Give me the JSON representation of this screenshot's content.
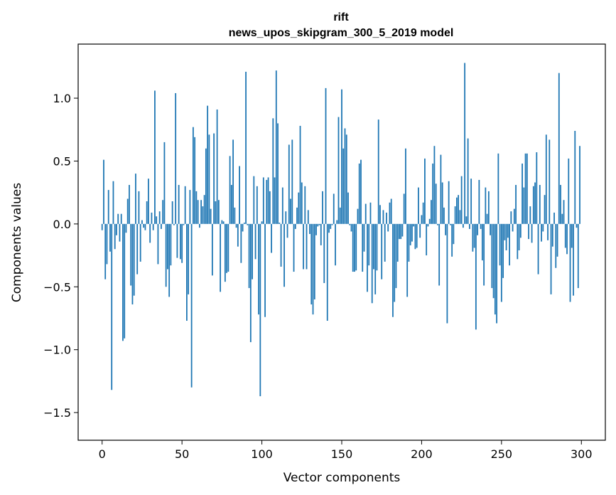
{
  "chart_data": {
    "type": "bar",
    "title_lines": [
      "rift",
      "news_upos_skipgram_300_5_2019 model"
    ],
    "xlabel": "Vector components",
    "ylabel": "Components values",
    "xlim": [
      -15,
      315
    ],
    "ylim": [
      -1.72,
      1.43
    ],
    "x_ticks": [
      0,
      50,
      100,
      150,
      200,
      250,
      300
    ],
    "y_ticks": [
      -1.5,
      -1.0,
      -0.5,
      0.0,
      0.5,
      1.0
    ],
    "y_tick_labels": [
      "−1.5",
      "−1.0",
      "−0.5",
      "0.0",
      "0.5",
      "1.0"
    ],
    "bar_color": "#1f77b4",
    "grid": false,
    "values": [
      -0.05,
      0.51,
      -0.44,
      -0.32,
      0.27,
      -0.22,
      -1.32,
      0.34,
      -0.2,
      -0.09,
      0.08,
      -0.14,
      0.08,
      -0.93,
      -0.91,
      -0.07,
      0.2,
      0.31,
      -0.49,
      -0.64,
      -0.57,
      0.4,
      -0.4,
      0.26,
      -0.3,
      0.03,
      -0.03,
      -0.05,
      0.18,
      0.36,
      -0.15,
      0.09,
      -0.05,
      1.06,
      0.06,
      -0.32,
      0.1,
      -0.04,
      0.19,
      0.65,
      -0.5,
      -0.36,
      -0.58,
      -0.33,
      0.18,
      -0.01,
      1.04,
      -0.27,
      0.31,
      -0.28,
      -0.31,
      -0.01,
      0.3,
      -0.77,
      -0.56,
      0.27,
      -1.3,
      0.77,
      0.69,
      0.26,
      0.19,
      -0.03,
      0.19,
      0.14,
      0.23,
      0.6,
      0.94,
      0.71,
      0.12,
      -0.41,
      0.72,
      0.18,
      0.91,
      0.19,
      -0.54,
      0.03,
      0.02,
      -0.46,
      -0.39,
      -0.38,
      0.54,
      0.31,
      0.67,
      0.13,
      -0.03,
      -0.18,
      0.46,
      -0.31,
      -0.06,
      0.01,
      1.21,
      -0.01,
      -0.51,
      -0.94,
      -0.44,
      0.38,
      -0.28,
      0.3,
      -0.72,
      -1.37,
      0.02,
      0.37,
      -0.74,
      0.35,
      0.37,
      0.26,
      -0.23,
      0.84,
      0.37,
      1.22,
      0.8,
      0.01,
      -0.34,
      0.29,
      -0.5,
      0.1,
      -0.11,
      0.63,
      0.2,
      0.67,
      -0.38,
      -0.04,
      0.13,
      0.25,
      0.78,
      0.33,
      -0.36,
      0.3,
      -0.36,
      0.11,
      -0.08,
      -0.64,
      -0.72,
      -0.6,
      -0.09,
      -0.02,
      -0.01,
      -0.17,
      0.26,
      -0.47,
      1.08,
      -0.77,
      -0.07,
      -0.04,
      -0.01,
      0.24,
      -0.33,
      0.03,
      0.85,
      0.13,
      1.07,
      0.6,
      0.76,
      0.71,
      0.25,
      -0.01,
      -0.06,
      -0.38,
      -0.38,
      -0.37,
      0.12,
      0.48,
      0.51,
      -0.38,
      -0.22,
      0.16,
      -0.54,
      -0.33,
      0.17,
      -0.63,
      -0.36,
      -0.56,
      -0.37,
      0.83,
      0.15,
      -0.44,
      0.11,
      -0.3,
      0.09,
      -0.06,
      0.17,
      0.2,
      -0.74,
      -0.62,
      -0.51,
      -0.3,
      -0.12,
      -0.12,
      -0.1,
      0.24,
      0.6,
      -0.58,
      -0.3,
      -0.17,
      -0.14,
      -0.02,
      -0.2,
      -0.19,
      0.29,
      -0.11,
      0.07,
      0.17,
      0.52,
      -0.25,
      -0.02,
      0.04,
      0.19,
      0.48,
      0.62,
      0.32,
      -0.01,
      -0.49,
      0.55,
      0.33,
      0.13,
      -0.09,
      -0.79,
      0.34,
      -0.01,
      -0.26,
      -0.16,
      0.14,
      0.21,
      0.23,
      0.11,
      0.38,
      -0.03,
      1.28,
      0.06,
      0.68,
      -0.04,
      0.36,
      -0.22,
      -0.19,
      -0.84,
      -0.09,
      0.35,
      -0.04,
      -0.29,
      -0.49,
      0.29,
      0.08,
      0.26,
      -0.09,
      -0.51,
      -0.59,
      -0.72,
      -0.79,
      0.56,
      -0.33,
      -0.62,
      -0.43,
      -0.13,
      -0.21,
      -0.11,
      -0.33,
      0.1,
      -0.06,
      0.12,
      0.31,
      -0.28,
      -0.21,
      -0.11,
      0.48,
      0.29,
      0.56,
      0.56,
      -0.12,
      0.14,
      -0.15,
      0.3,
      0.33,
      0.57,
      -0.4,
      0.31,
      -0.14,
      -0.06,
      0.23,
      0.71,
      -0.13,
      0.67,
      -0.56,
      -0.18,
      0.09,
      -0.35,
      -0.26,
      1.2,
      0.31,
      0.08,
      0.19,
      -0.19,
      -0.24,
      0.52,
      -0.62,
      -0.19,
      -0.57,
      0.74,
      -0.03,
      -0.51,
      0.62
    ]
  }
}
